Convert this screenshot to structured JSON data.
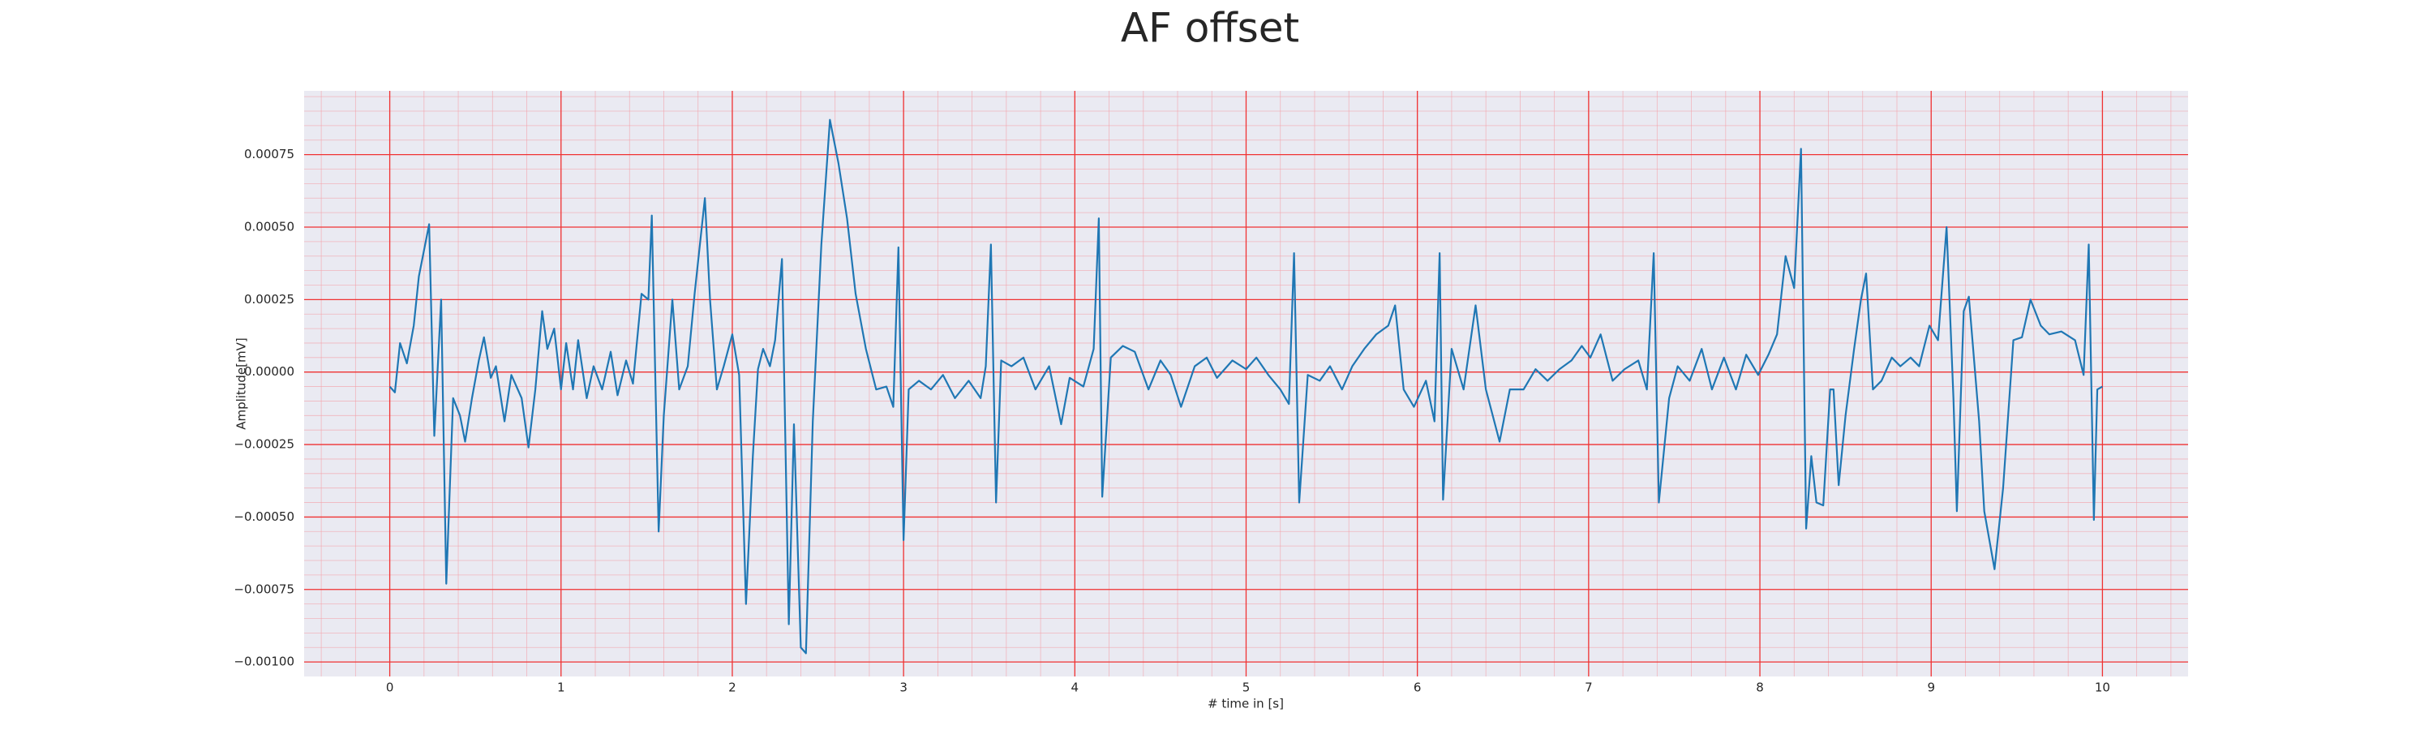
{
  "chart_data": {
    "type": "line",
    "title": "AF offset",
    "x_label": "# time in [s]",
    "y_label": "Amplitude[mV]",
    "color": "#1f77b4",
    "background": "#eaeaf2",
    "grid": true,
    "minor_grid": true,
    "grid_color": "#f03232",
    "minor_grid_color": "#f4a0a8",
    "xlim": [
      -0.5,
      10.5
    ],
    "xticks": [
      0,
      1,
      2,
      3,
      4,
      5,
      6,
      7,
      8,
      9,
      10
    ],
    "ylim": [
      -0.00105,
      0.00097
    ],
    "yticks": [
      {
        "value": -0.001,
        "label": "−0.00100"
      },
      {
        "value": -0.00075,
        "label": "−0.00075"
      },
      {
        "value": -0.0005,
        "label": "−0.00050"
      },
      {
        "value": -0.00025,
        "label": "−0.00025"
      },
      {
        "value": 0,
        "label": "0.00000"
      },
      {
        "value": 0.00025,
        "label": "0.00025"
      },
      {
        "value": 0.0005,
        "label": "0.00050"
      },
      {
        "value": 0.00075,
        "label": "0.00075"
      }
    ],
    "x": [
      0.0,
      0.03,
      0.06,
      0.1,
      0.14,
      0.17,
      0.23,
      0.26,
      0.3,
      0.33,
      0.37,
      0.41,
      0.44,
      0.48,
      0.52,
      0.55,
      0.59,
      0.62,
      0.67,
      0.71,
      0.77,
      0.81,
      0.85,
      0.89,
      0.92,
      0.96,
      1.0,
      1.03,
      1.07,
      1.1,
      1.15,
      1.19,
      1.24,
      1.29,
      1.33,
      1.38,
      1.42,
      1.47,
      1.51,
      1.53,
      1.57,
      1.6,
      1.65,
      1.69,
      1.74,
      1.78,
      1.84,
      1.87,
      1.91,
      1.95,
      2.0,
      2.04,
      2.08,
      2.12,
      2.15,
      2.18,
      2.22,
      2.25,
      2.29,
      2.33,
      2.36,
      2.4,
      2.43,
      2.47,
      2.52,
      2.57,
      2.62,
      2.67,
      2.72,
      2.78,
      2.84,
      2.9,
      2.94,
      2.97,
      3.0,
      3.03,
      3.09,
      3.16,
      3.23,
      3.3,
      3.38,
      3.45,
      3.48,
      3.51,
      3.54,
      3.57,
      3.63,
      3.7,
      3.77,
      3.85,
      3.92,
      3.97,
      4.05,
      4.11,
      4.14,
      4.16,
      4.21,
      4.28,
      4.35,
      4.43,
      4.5,
      4.56,
      4.62,
      4.7,
      4.77,
      4.83,
      4.92,
      5.0,
      5.06,
      5.13,
      5.2,
      5.25,
      5.28,
      5.31,
      5.36,
      5.43,
      5.49,
      5.56,
      5.62,
      5.69,
      5.76,
      5.83,
      5.87,
      5.92,
      5.98,
      6.05,
      6.1,
      6.13,
      6.15,
      6.2,
      6.27,
      6.34,
      6.4,
      6.48,
      6.54,
      6.62,
      6.69,
      6.76,
      6.83,
      6.9,
      6.96,
      7.01,
      7.07,
      7.14,
      7.21,
      7.29,
      7.34,
      7.38,
      7.41,
      7.47,
      7.52,
      7.59,
      7.66,
      7.72,
      7.79,
      7.86,
      7.92,
      7.99,
      8.05,
      8.1,
      8.15,
      8.2,
      8.24,
      8.27,
      8.3,
      8.33,
      8.37,
      8.41,
      8.43,
      8.46,
      8.5,
      8.55,
      8.59,
      8.62,
      8.66,
      8.71,
      8.77,
      8.82,
      8.88,
      8.93,
      8.99,
      9.04,
      9.09,
      9.13,
      9.15,
      9.19,
      9.22,
      9.28,
      9.31,
      9.37,
      9.42,
      9.48,
      9.53,
      9.58,
      9.64,
      9.69,
      9.76,
      9.84,
      9.89,
      9.92,
      9.95,
      9.97,
      10.0
    ],
    "values": [
      -5e-05,
      -7e-05,
      0.0001,
      3e-05,
      0.00016,
      0.00033,
      0.00051,
      -0.00022,
      0.00025,
      -0.00073,
      -9e-05,
      -0.00015,
      -0.00024,
      -9e-05,
      4e-05,
      0.00012,
      -2e-05,
      2e-05,
      -0.00017,
      -1e-05,
      -9e-05,
      -0.00026,
      -6e-05,
      0.00021,
      8e-05,
      0.00015,
      -6e-05,
      0.0001,
      -6e-05,
      0.00011,
      -9e-05,
      2e-05,
      -6e-05,
      7e-05,
      -8e-05,
      4e-05,
      -4e-05,
      0.00027,
      0.00025,
      0.00054,
      -0.00055,
      -0.00015,
      0.00025,
      -6e-05,
      2e-05,
      0.00027,
      0.0006,
      0.00025,
      -6e-05,
      2e-05,
      0.00013,
      -1e-05,
      -0.0008,
      -0.00029,
      1e-05,
      8e-05,
      2e-05,
      0.00011,
      0.00039,
      -0.00087,
      -0.00018,
      -0.00095,
      -0.00097,
      -0.00017,
      0.00044,
      0.00087,
      0.00072,
      0.00053,
      0.00027,
      8e-05,
      -6e-05,
      -5e-05,
      -0.00012,
      0.00043,
      -0.00058,
      -6e-05,
      -3e-05,
      -6e-05,
      -1e-05,
      -9e-05,
      -3e-05,
      -9e-05,
      2e-05,
      0.00044,
      -0.00045,
      4e-05,
      2e-05,
      5e-05,
      -6e-05,
      2e-05,
      -0.00018,
      -2e-05,
      -5e-05,
      8e-05,
      0.00053,
      -0.00043,
      5e-05,
      9e-05,
      7e-05,
      -6e-05,
      4e-05,
      -1e-05,
      -0.00012,
      2e-05,
      5e-05,
      -2e-05,
      4e-05,
      1e-05,
      5e-05,
      -1e-05,
      -6e-05,
      -0.00011,
      0.00041,
      -0.00045,
      -1e-05,
      -3e-05,
      2e-05,
      -6e-05,
      2e-05,
      8e-05,
      0.00013,
      0.00016,
      0.00023,
      -6e-05,
      -0.00012,
      -3e-05,
      -0.00017,
      0.00041,
      -0.00044,
      8e-05,
      -6e-05,
      0.00023,
      -6e-05,
      -0.00024,
      -6e-05,
      -6e-05,
      1e-05,
      -3e-05,
      1e-05,
      4e-05,
      9e-05,
      5e-05,
      0.00013,
      -3e-05,
      1e-05,
      4e-05,
      -6e-05,
      0.00041,
      -0.00045,
      -9e-05,
      2e-05,
      -3e-05,
      8e-05,
      -6e-05,
      5e-05,
      -6e-05,
      6e-05,
      -1e-05,
      6e-05,
      0.00013,
      0.0004,
      0.00029,
      0.00077,
      -0.00054,
      -0.00029,
      -0.00045,
      -0.00046,
      -6e-05,
      -6e-05,
      -0.00039,
      -0.00015,
      8e-05,
      0.00025,
      0.00034,
      -6e-05,
      -3e-05,
      5e-05,
      2e-05,
      5e-05,
      2e-05,
      0.00016,
      0.00011,
      0.0005,
      -9e-05,
      -0.00048,
      0.00021,
      0.00026,
      -0.00017,
      -0.00048,
      -0.00068,
      -0.0004,
      0.00011,
      0.00012,
      0.00025,
      0.00016,
      0.00013,
      0.00014,
      0.00011,
      -1e-05,
      0.00044,
      -0.00051,
      -6e-05,
      -5e-05
    ]
  }
}
